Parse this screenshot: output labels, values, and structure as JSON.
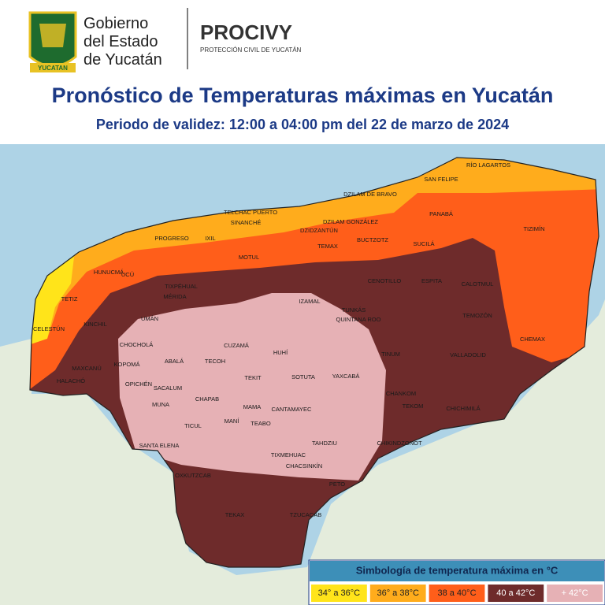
{
  "header": {
    "government": [
      "Gobierno",
      "del Estado",
      "de Yucatán"
    ],
    "shield_text": "YUCATAN",
    "agency": "PROCIVY",
    "agency_subtitle": "PROTECCIÓN CIVIL DE YUCATÁN"
  },
  "title": "Pronóstico de Temperaturas máximas en Yucatán",
  "subtitle": "Periodo de validez: 12:00 a 04:00 pm del 22 de marzo de 2024",
  "map": {
    "labels": [
      "RÍO LAGARTOS",
      "SAN FELIPE",
      "DZILAM DE BRAVO",
      "TELCHAC PUERTO",
      "SINANCHÉ",
      "DZILAM GONZÁLEZ",
      "DZIDZANTÚN",
      "PANABÁ",
      "TIZIMÍN",
      "PROGRESO",
      "IXIL",
      "BUCTZOTZ",
      "SUCILÁ",
      "HUNUCMÁ",
      "MOTUL",
      "TEMAX",
      "CENOTILLO",
      "ESPITA",
      "CALOTMUL",
      "TETIZ",
      "UCÚ",
      "TIXPÉHUAL",
      "MÉRIDA",
      "IZAMAL",
      "TUNKÁS",
      "QUINTANA ROO",
      "CELESTÚN",
      "KINCHIL",
      "UMÁN",
      "TEMOZÓN",
      "CHEMAX",
      "CHOCHOLÁ",
      "HUHÍ",
      "CUZAMÁ",
      "SOTUTA",
      "TINUM",
      "VALLADOLID",
      "MAXCANÚ",
      "KOPOMÁ",
      "ABALÁ",
      "TECOH",
      "TEKIT",
      "YAXCABÁ",
      "OPICHÉN",
      "SACALUM",
      "CHANKOM",
      "TEKOM",
      "HALACHÓ",
      "MUNA",
      "CHAPAB",
      "MAMA",
      "CHICHIMILÁ",
      "TICUL",
      "SANTA ELENA",
      "MANÍ",
      "TEABO",
      "CANTAMAYEC",
      "TAHDZIU",
      "CHIKINDZONOT",
      "TIXMEHUAC",
      "CHACSINKÍN",
      "OXKUTZCAB",
      "PETO",
      "TEKAX",
      "TZUCACAB"
    ]
  },
  "legend": {
    "title": "Simbología de temperatura máxima en °C",
    "items": [
      {
        "label": "34° a 36°C",
        "color": "#ffe41a"
      },
      {
        "label": "36° a 38°C",
        "color": "#ffac1c"
      },
      {
        "label": "38 a 40°C",
        "color": "#ff5e1a"
      },
      {
        "label": "40 a 42°C",
        "color": "#6e2b2b"
      },
      {
        "label": "+ 42°C",
        "color": "#e6b1b5"
      }
    ]
  }
}
